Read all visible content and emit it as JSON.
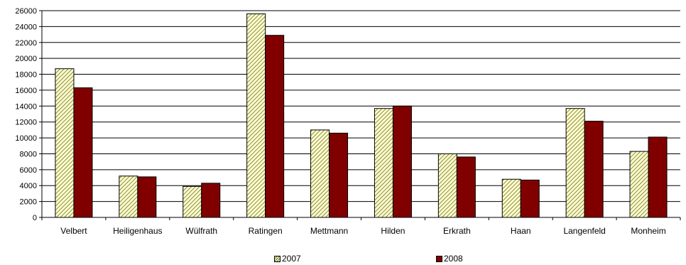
{
  "chart_data": {
    "type": "bar",
    "categories": [
      "Velbert",
      "Heiligenhaus",
      "Wülfrath",
      "Ratingen",
      "Mettmann",
      "Hilden",
      "Erkrath",
      "Haan",
      "Langenfeld",
      "Monheim"
    ],
    "series": [
      {
        "name": "2007",
        "values": [
          18700,
          5200,
          3900,
          25600,
          11000,
          13700,
          8000,
          4800,
          13700,
          8300
        ],
        "color": "#ffffcc",
        "pattern": "diagonal-hatch"
      },
      {
        "name": "2008",
        "values": [
          16300,
          5100,
          4300,
          22900,
          10600,
          14000,
          7600,
          4700,
          12100,
          10100
        ],
        "color": "#800000"
      }
    ],
    "ylim": [
      0,
      26000
    ],
    "yticks": [
      "0",
      "2000",
      "4000",
      "6000",
      "8000",
      "10000",
      "12000",
      "14000",
      "16000",
      "18000",
      "20000",
      "22000",
      "24000",
      "26000"
    ],
    "grid": true,
    "legend": "bottom",
    "title": "",
    "xlabel": "",
    "ylabel": ""
  }
}
